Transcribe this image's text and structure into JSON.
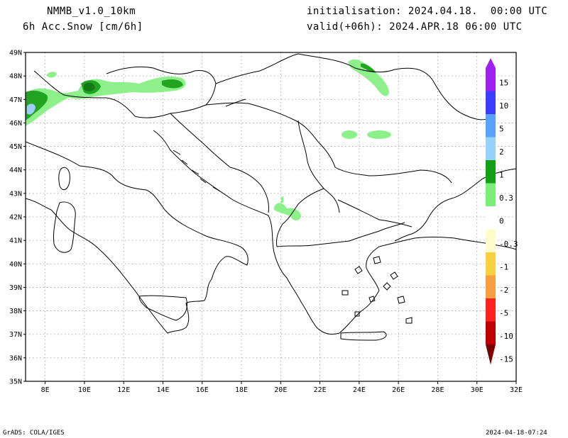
{
  "header": {
    "model": "NMMB_v1.0_10km",
    "field": "6h Acc.Snow [cm/6h]",
    "init": "initialisation: 2024.04.18.  00:00 UTC",
    "valid": "valid(+06h): 2024.APR.18 06:00 UTC"
  },
  "footer": {
    "credit": "GrADS: COLA/IGES",
    "timestamp": "2024-04-18-07:24"
  },
  "map": {
    "lon_range": [
      7,
      32
    ],
    "lat_range": [
      35,
      49
    ],
    "lon_ticks": [
      "8E",
      "10E",
      "12E",
      "14E",
      "16E",
      "18E",
      "20E",
      "22E",
      "24E",
      "26E",
      "28E",
      "30E",
      "32E"
    ],
    "lat_ticks": [
      "35N",
      "36N",
      "37N",
      "38N",
      "39N",
      "40N",
      "41N",
      "42N",
      "43N",
      "44N",
      "45N",
      "46N",
      "47N",
      "48N",
      "49N"
    ],
    "gridlines": "dotted",
    "colors": {
      "coast": "#000000",
      "grid": "#9a9a9a",
      "light_green": "#8ef08a",
      "green": "#22a322",
      "dark_green": "#147a14",
      "light_blue": "#9ccff7"
    }
  },
  "colorbar": {
    "labels": [
      "15",
      "10",
      "5",
      "2",
      "1",
      "0.3",
      "0",
      "-0.3",
      "-1",
      "-2",
      "-5",
      "-10",
      "-15"
    ],
    "colors": [
      "#a020f0",
      "#3c3cff",
      "#5aa0ff",
      "#96d2fa",
      "#14a014",
      "#78f078",
      "#ffffff",
      "#fffccc",
      "#f8d040",
      "#f8a040",
      "#ff2020",
      "#c00000",
      "#7a0000"
    ]
  }
}
